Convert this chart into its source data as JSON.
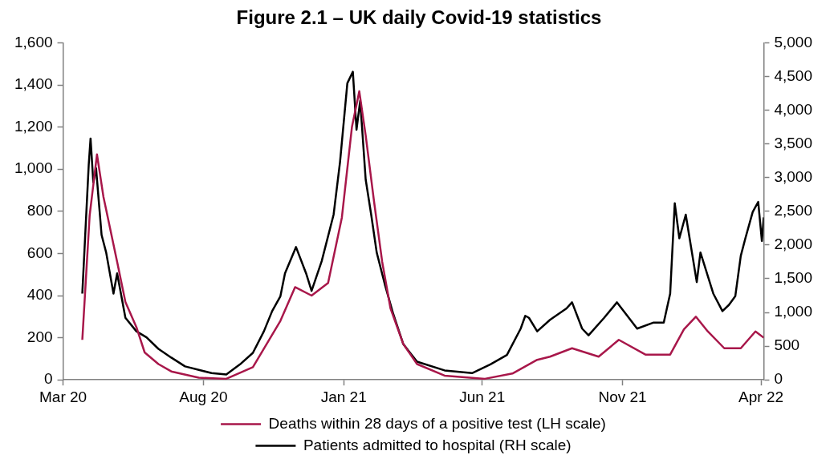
{
  "chart_data": {
    "type": "line",
    "title": "Figure 2.1 – UK daily Covid-19 statistics",
    "xlim": [
      "2020-03-01",
      "2022-04-04"
    ],
    "xticks": [
      {
        "value": "2020-03-01",
        "label": "Mar 20"
      },
      {
        "value": "2020-08-01",
        "label": "Aug 20"
      },
      {
        "value": "2021-01-01",
        "label": "Jan 21"
      },
      {
        "value": "2021-06-01",
        "label": "Jun 21"
      },
      {
        "value": "2021-11-01",
        "label": "Nov 21"
      },
      {
        "value": "2022-04-01",
        "label": "Apr 22"
      }
    ],
    "ylim": [
      0,
      1600
    ],
    "yticks": [
      0,
      200,
      400,
      600,
      800,
      {
        "value": 1000,
        "label": "1,000"
      },
      {
        "value": 1200,
        "label": "1,200"
      },
      {
        "value": 1400,
        "label": "1,400"
      },
      {
        "value": 1600,
        "label": "1,600"
      }
    ],
    "y2lim": [
      0,
      5000
    ],
    "y2ticks": [
      0,
      500,
      {
        "value": 1000,
        "label": "1,000"
      },
      {
        "value": 1500,
        "label": "1,500"
      },
      {
        "value": 2000,
        "label": "2,000"
      },
      {
        "value": 2500,
        "label": "2,500"
      },
      {
        "value": 3000,
        "label": "3,000"
      },
      {
        "value": 3500,
        "label": "3,500"
      },
      {
        "value": 4000,
        "label": "4,000"
      },
      {
        "value": 4500,
        "label": "4,500"
      },
      {
        "value": 5000,
        "label": "5,000"
      }
    ],
    "grid": false,
    "legend": "bottom",
    "marker": "none",
    "line_style": "solid",
    "series": [
      {
        "name": "Deaths within 28 days of a positive test (LH scale)",
        "color": "#a8174a",
        "x": [
          "2020-03-22",
          "2020-03-30",
          "2020-04-07",
          "2020-04-14",
          "2020-04-29",
          "2020-05-08",
          "2020-05-20",
          "2020-05-29",
          "2020-06-13",
          "2020-06-27",
          "2020-07-27",
          "2020-08-26",
          "2020-09-24",
          "2020-10-24",
          "2020-11-09",
          "2020-11-27",
          "2020-12-15",
          "2020-12-30",
          "2021-01-10",
          "2021-01-18",
          "2021-01-25",
          "2021-02-03",
          "2021-02-12",
          "2021-02-21",
          "2021-03-07",
          "2021-03-22",
          "2021-04-21",
          "2021-06-04",
          "2021-07-04",
          "2021-07-31",
          "2021-08-14",
          "2021-09-07",
          "2021-10-06",
          "2021-10-28",
          "2021-11-26",
          "2021-12-23",
          "2022-01-07",
          "2022-01-20",
          "2022-02-02",
          "2022-02-20",
          "2022-03-10",
          "2022-03-26",
          "2022-04-04"
        ],
        "values": [
          190,
          780,
          1070,
          870,
          560,
          370,
          250,
          130,
          75,
          40,
          10,
          5,
          60,
          280,
          440,
          400,
          460,
          770,
          1200,
          1370,
          1160,
          850,
          560,
          340,
          170,
          75,
          20,
          5,
          30,
          95,
          110,
          150,
          110,
          190,
          120,
          120,
          240,
          300,
          230,
          150,
          150,
          230,
          200
        ]
      },
      {
        "name": "Patients admitted to hospital (RH scale)",
        "color": "#000000",
        "axis": "y2",
        "x": [
          "2020-03-22",
          "2020-03-25",
          "2020-03-29",
          "2020-03-31",
          "2020-04-03",
          "2020-04-06",
          "2020-04-12",
          "2020-04-17",
          "2020-04-25",
          "2020-04-29",
          "2020-05-08",
          "2020-05-20",
          "2020-05-31",
          "2020-06-13",
          "2020-06-27",
          "2020-07-12",
          "2020-08-10",
          "2020-08-26",
          "2020-09-10",
          "2020-09-24",
          "2020-10-06",
          "2020-10-15",
          "2020-10-24",
          "2020-10-29",
          "2020-11-10",
          "2020-11-21",
          "2020-11-27",
          "2020-12-08",
          "2020-12-21",
          "2020-12-28",
          "2021-01-05",
          "2021-01-11",
          "2021-01-15",
          "2021-01-19",
          "2021-01-25",
          "2021-01-31",
          "2021-02-06",
          "2021-02-15",
          "2021-02-24",
          "2021-03-07",
          "2021-03-22",
          "2021-04-21",
          "2021-05-21",
          "2021-06-10",
          "2021-06-28",
          "2021-07-13",
          "2021-07-18",
          "2021-07-22",
          "2021-07-31",
          "2021-08-14",
          "2021-09-01",
          "2021-09-07",
          "2021-09-18",
          "2021-09-25",
          "2021-10-12",
          "2021-10-26",
          "2021-11-17",
          "2021-12-05",
          "2021-12-16",
          "2021-12-23",
          "2021-12-28",
          "2022-01-02",
          "2022-01-09",
          "2022-01-21",
          "2022-01-25",
          "2022-02-08",
          "2022-02-18",
          "2022-02-25",
          "2022-03-04",
          "2022-03-10",
          "2022-03-15",
          "2022-03-23",
          "2022-03-29",
          "2022-04-02",
          "2022-04-04"
        ],
        "values": [
          1280,
          2100,
          3190,
          3580,
          2930,
          3140,
          2150,
          1890,
          1280,
          1580,
          920,
          720,
          630,
          460,
          330,
          200,
          100,
          80,
          230,
          400,
          720,
          1020,
          1240,
          1580,
          1970,
          1580,
          1320,
          1760,
          2450,
          3230,
          4400,
          4570,
          3710,
          4140,
          2970,
          2450,
          1890,
          1410,
          980,
          530,
          270,
          140,
          100,
          230,
          370,
          760,
          950,
          920,
          720,
          890,
          1060,
          1150,
          760,
          660,
          920,
          1150,
          760,
          850,
          850,
          1280,
          2620,
          2100,
          2450,
          1450,
          1890,
          1280,
          1020,
          1110,
          1240,
          1840,
          2100,
          2490,
          2640,
          2060,
          2410
        ]
      }
    ]
  }
}
